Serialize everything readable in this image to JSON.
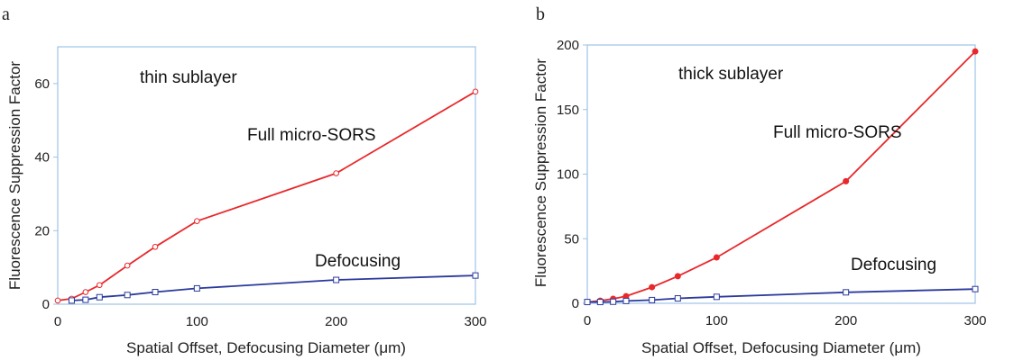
{
  "chart_data": [
    {
      "panel_label": "a",
      "type": "line",
      "xlabel": "Spatial Offset, Defocusing Diameter (μm)",
      "ylabel": "Fluorescence Suppression Factor",
      "xlim": [
        0,
        300
      ],
      "ylim": [
        0,
        70
      ],
      "xticks": [
        0,
        100,
        200,
        300
      ],
      "yticks": [
        0,
        20,
        40,
        60
      ],
      "grid": false,
      "annotations": {
        "condition": "thin sublayer",
        "series_labels": [
          "Full micro-SORS",
          "Defocusing"
        ]
      },
      "series": [
        {
          "name": "Full micro-SORS",
          "color": "#e8282b",
          "marker": "open-circle",
          "x": [
            0,
            10,
            20,
            30,
            50,
            70,
            100,
            200,
            300
          ],
          "y": [
            1,
            1.5,
            3.3,
            5.2,
            10.5,
            15.6,
            22.6,
            35.6,
            57.8
          ]
        },
        {
          "name": "Defocusing",
          "color": "#2b3a9c",
          "marker": "open-square",
          "x": [
            10,
            20,
            30,
            50,
            70,
            100,
            200,
            300
          ],
          "y": [
            1,
            1.2,
            1.9,
            2.5,
            3.3,
            4.3,
            6.6,
            7.8
          ]
        }
      ]
    },
    {
      "panel_label": "b",
      "type": "line",
      "xlabel": "Spatial Offset, Defocusing Diameter (μm)",
      "ylabel": "Fluorescence Suppression  Factor",
      "xlim": [
        0,
        300
      ],
      "ylim": [
        0,
        200
      ],
      "xticks": [
        0,
        100,
        200,
        300
      ],
      "yticks": [
        0,
        50,
        100,
        150,
        200
      ],
      "grid": false,
      "annotations": {
        "condition": "thick sublayer",
        "series_labels": [
          "Full micro-SORS",
          "Defocusing"
        ]
      },
      "series": [
        {
          "name": "Full micro-SORS",
          "color": "#e8282b",
          "marker": "filled-circle",
          "x": [
            0,
            10,
            20,
            30,
            50,
            70,
            100,
            200,
            300
          ],
          "y": [
            1,
            2,
            3.5,
            5.5,
            12.5,
            21,
            35.5,
            94.5,
            195
          ]
        },
        {
          "name": "Defocusing",
          "color": "#2b3a9c",
          "marker": "open-square",
          "x": [
            0,
            10,
            20,
            30,
            50,
            70,
            100,
            200,
            300
          ],
          "y": [
            1,
            1,
            1.2,
            1.8,
            2.5,
            3.8,
            5,
            8.5,
            11
          ]
        }
      ]
    }
  ]
}
